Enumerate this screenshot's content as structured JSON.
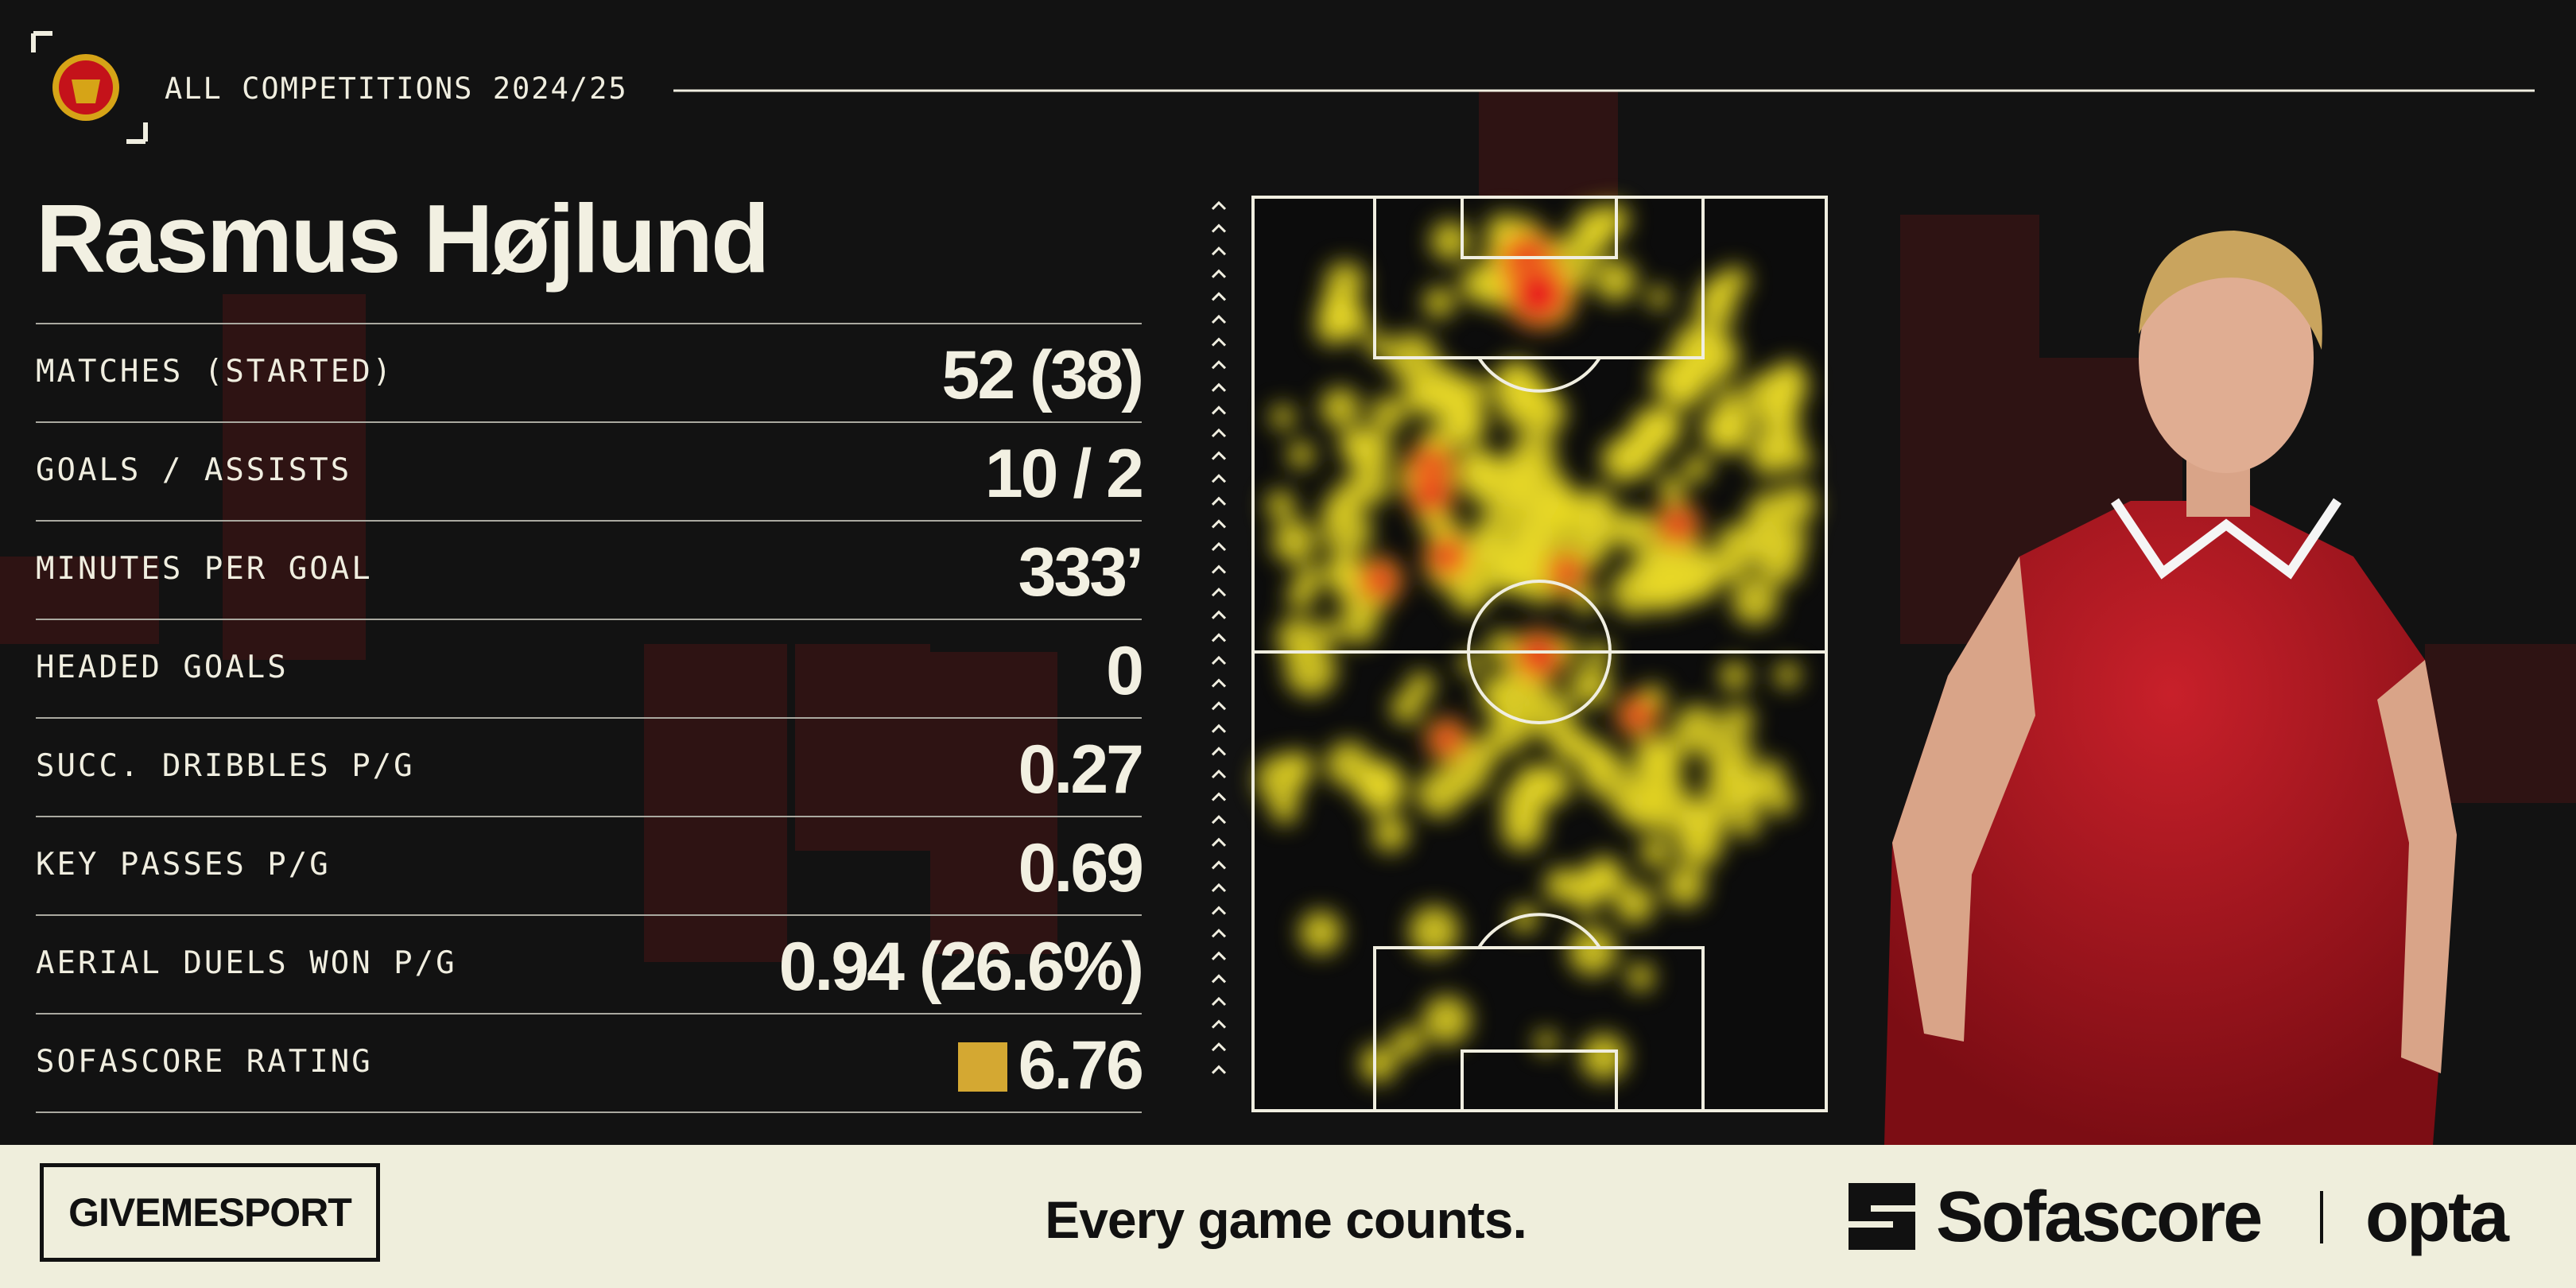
{
  "header": {
    "competition": "ALL COMPETITIONS 2024/25"
  },
  "player": {
    "name": "Rasmus Højlund"
  },
  "stats": {
    "rows": [
      {
        "label": "MATCHES (STARTED)",
        "value": "52 (38)"
      },
      {
        "label": "GOALS / ASSISTS",
        "value": "10 / 2"
      },
      {
        "label": "MINUTES PER GOAL",
        "value": "333’"
      },
      {
        "label": "HEADED GOALS",
        "value": "0"
      },
      {
        "label": "SUCC. DRIBBLES P/G",
        "value": "0.27"
      },
      {
        "label": "KEY PASSES P/G",
        "value": "0.69"
      },
      {
        "label": "AERIAL DUELS WON P/G",
        "value": "0.94 (26.6%)"
      },
      {
        "label": "SOFASCORE RATING",
        "value": "6.76"
      }
    ]
  },
  "footer": {
    "brand": "GIVEMESPORT",
    "tagline": "Every game counts.",
    "partners": [
      "Sofascore",
      "opta"
    ]
  }
}
